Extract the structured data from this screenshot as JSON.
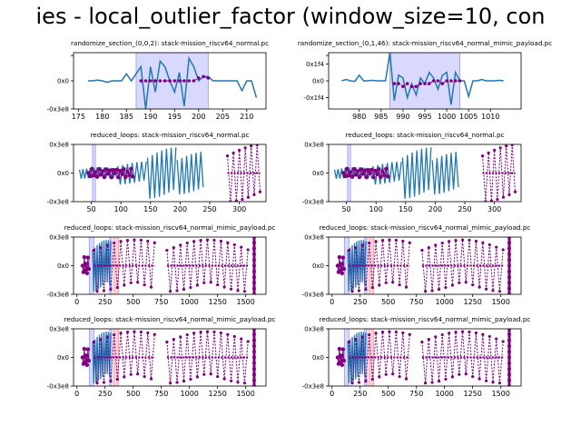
{
  "figure": {
    "suptitle": "ies - local_outlier_factor (window_size=10, con"
  },
  "colors": {
    "line": "#1f77b4",
    "outlier": "#800080",
    "highlight_blue": "#0000ff",
    "highlight_red": "#ff0000"
  },
  "chart_data": [
    {
      "type": "line",
      "title": "randomize_section_(0,0,2): stack-mission_riscv64_normal.pc",
      "xlim": [
        174,
        214
      ],
      "ylim": [
        -1,
        1
      ],
      "xticks": [
        175,
        180,
        185,
        190,
        195,
        200,
        205,
        210
      ],
      "xtick_labels": [
        "175",
        "180",
        "185",
        "190",
        "195",
        "200",
        "205",
        "210"
      ],
      "yticks": [
        0.9,
        0,
        -1
      ],
      "ytick_labels": [
        "",
        "0x0",
        "-0x3e8"
      ],
      "spans": [
        {
          "x0": 187,
          "x1": 202,
          "color": "blue"
        }
      ],
      "series": [
        {
          "style": "line",
          "color": "#1f77b4",
          "x": [
            177,
            178,
            179,
            180,
            181,
            182,
            183,
            184,
            185,
            186,
            187,
            188,
            189,
            190,
            191,
            192,
            193,
            194,
            195,
            196,
            197,
            198,
            199,
            200,
            201,
            202,
            203,
            204,
            205,
            206,
            207,
            208,
            209,
            210,
            211,
            212
          ],
          "y": [
            0,
            0,
            0.03,
            0,
            -0.05,
            0,
            0,
            0,
            0.25,
            0,
            0.25,
            0.5,
            -1,
            0.5,
            -0.4,
            0.7,
            0.5,
            0,
            -0.4,
            0.3,
            -0.9,
            0.8,
            0.5,
            0,
            0.15,
            0.15,
            0,
            0,
            0,
            0,
            0,
            0,
            -0.35,
            0,
            0,
            -0.6
          ]
        },
        {
          "style": "points",
          "color": "#800080",
          "x": [
            188,
            189,
            190,
            191,
            192,
            193,
            194,
            195,
            196,
            197,
            198,
            199,
            200,
            201,
            202
          ],
          "y": [
            0,
            0,
            0,
            0,
            0,
            0,
            0,
            0,
            0,
            0,
            0,
            0,
            0.1,
            0.15,
            0.1
          ]
        }
      ]
    },
    {
      "type": "line",
      "title": "randomize_section_(0,1,46): stack-mission_riscv64_normal_mimic_payload.pc",
      "xlim": [
        973,
        1017
      ],
      "ylim": [
        -1,
        1
      ],
      "xticks": [
        980,
        985,
        990,
        995,
        1000,
        1005,
        1010
      ],
      "xtick_labels": [
        "980",
        "985",
        "990",
        "995",
        "1000",
        "1005",
        "1010"
      ],
      "yticks": [
        0.9,
        0.6,
        0,
        -0.6
      ],
      "ytick_labels": [
        "",
        "0x1f4",
        "0x0",
        "-0x1f4"
      ],
      "spans": [
        {
          "x0": 987,
          "x1": 1003,
          "color": "blue"
        }
      ],
      "series": [
        {
          "style": "line",
          "color": "#1f77b4",
          "x": [
            976,
            977,
            978,
            979,
            980,
            981,
            982,
            983,
            984,
            985,
            986,
            987,
            988,
            989,
            990,
            991,
            992,
            993,
            994,
            995,
            996,
            997,
            998,
            999,
            1000,
            1001,
            1002,
            1003,
            1004,
            1005,
            1006,
            1007,
            1008,
            1009,
            1010,
            1011,
            1012,
            1013
          ],
          "y": [
            0,
            0.05,
            0,
            -0.02,
            0.2,
            0,
            0,
            0.02,
            0,
            0,
            0,
            1,
            -0.7,
            0.2,
            0.1,
            -0.6,
            -0.1,
            -0.5,
            0.1,
            -0.1,
            0.3,
            0.1,
            -0.3,
            0.2,
            0.3,
            -0.85,
            0.3,
            0,
            0,
            -0.55,
            0,
            0,
            0.05,
            0,
            0,
            0,
            0.02,
            0
          ]
        },
        {
          "style": "points",
          "color": "#800080",
          "x": [
            988,
            989,
            990,
            991,
            992,
            993,
            994,
            995,
            996,
            997,
            998,
            999,
            1000,
            1001,
            1002,
            1003
          ],
          "y": [
            -0.1,
            -0.1,
            -0.2,
            -0.1,
            -0.2,
            -0.2,
            -0.1,
            -0.1,
            -0.1,
            0,
            0,
            -0.1,
            0,
            0,
            0,
            0
          ]
        }
      ]
    },
    {
      "type": "line",
      "title": "reduced_loops: stack-mission_riscv64_normal.pc",
      "xlim": [
        20,
        345
      ],
      "ylim": [
        -1,
        1
      ],
      "xticks": [
        50,
        100,
        150,
        200,
        250,
        300
      ],
      "xtick_labels": [
        "50",
        "100",
        "150",
        "200",
        "250",
        "300"
      ],
      "yticks": [
        1,
        0,
        -1
      ],
      "ytick_labels": [
        "0x3e8",
        "0x0",
        "-0x3e8"
      ],
      "spans": [
        {
          "x0": 52,
          "x1": 57,
          "color": "blue"
        }
      ],
      "bursts": [
        {
          "x0": 30,
          "x1": 95,
          "amp": 0.2,
          "step": 3,
          "kind": "line"
        },
        {
          "x0": 95,
          "x1": 145,
          "amp": 0.4,
          "step": 4,
          "kind": "line"
        },
        {
          "x0": 145,
          "x1": 195,
          "amp": 0.9,
          "step": 4,
          "kind": "line"
        },
        {
          "x0": 195,
          "x1": 240,
          "amp": 0.75,
          "step": 4,
          "kind": "line"
        },
        {
          "x0": 45,
          "x1": 120,
          "amp": 0.15,
          "step": 3,
          "kind": "points"
        },
        {
          "x0": 280,
          "x1": 335,
          "amp": 1.0,
          "step": 5,
          "kind": "dashed"
        }
      ]
    },
    {
      "type": "line",
      "title": "reduced_loops: stack-mission_riscv64_normal.pc",
      "xlim": [
        20,
        345
      ],
      "ylim": [
        -1,
        1
      ],
      "xticks": [
        50,
        100,
        150,
        200,
        250,
        300
      ],
      "xtick_labels": [
        "50",
        "100",
        "150",
        "200",
        "250",
        "300"
      ],
      "yticks": [
        1,
        0,
        -1
      ],
      "ytick_labels": [
        "0x3e8",
        "0x0",
        "-0x3e8"
      ],
      "spans": [
        {
          "x0": 52,
          "x1": 57,
          "color": "blue"
        }
      ],
      "bursts": [
        {
          "x0": 30,
          "x1": 95,
          "amp": 0.2,
          "step": 3,
          "kind": "line"
        },
        {
          "x0": 95,
          "x1": 145,
          "amp": 0.4,
          "step": 4,
          "kind": "line"
        },
        {
          "x0": 145,
          "x1": 195,
          "amp": 0.9,
          "step": 4,
          "kind": "line"
        },
        {
          "x0": 195,
          "x1": 240,
          "amp": 0.75,
          "step": 4,
          "kind": "line"
        },
        {
          "x0": 45,
          "x1": 120,
          "amp": 0.15,
          "step": 3,
          "kind": "points"
        },
        {
          "x0": 280,
          "x1": 335,
          "amp": 1.0,
          "step": 5,
          "kind": "dashed"
        }
      ]
    },
    {
      "type": "line",
      "title": "reduced_loops: stack-mission_riscv64_normal_mimic_payload.pc",
      "xlim": [
        -30,
        1680
      ],
      "ylim": [
        -1,
        1
      ],
      "xticks": [
        0,
        250,
        500,
        750,
        1000,
        1250,
        1500
      ],
      "xtick_labels": [
        "0",
        "250",
        "500",
        "750",
        "1000",
        "1250",
        "1500"
      ],
      "yticks": [
        1,
        0,
        -1
      ],
      "ytick_labels": [
        "0x3e8",
        "0x0",
        "-0x3e8"
      ],
      "spans": [
        {
          "x0": 110,
          "x1": 150,
          "color": "blue"
        },
        {
          "x0": 290,
          "x1": 310,
          "color": "blue"
        },
        {
          "x0": 330,
          "x1": 370,
          "color": "red"
        }
      ],
      "bursts": [
        {
          "x0": 50,
          "x1": 110,
          "amp": 0.3,
          "step": 8,
          "kind": "points"
        },
        {
          "x0": 140,
          "x1": 300,
          "amp": 0.9,
          "step": 10,
          "kind": "line"
        },
        {
          "x0": 150,
          "x1": 700,
          "amp": 0.9,
          "step": 30,
          "kind": "dashed"
        },
        {
          "x0": 800,
          "x1": 1520,
          "amp": 0.9,
          "step": 30,
          "kind": "dashed"
        },
        {
          "x0": 1575,
          "x1": 1590,
          "amp": 1.0,
          "step": 3,
          "kind": "column"
        }
      ]
    },
    {
      "type": "line",
      "title": "reduced_loops: stack-mission_riscv64_normal_mimic_payload.pc",
      "xlim": [
        -30,
        1680
      ],
      "ylim": [
        -1,
        1
      ],
      "xticks": [
        0,
        250,
        500,
        750,
        1000,
        1250,
        1500
      ],
      "xtick_labels": [
        "0",
        "250",
        "500",
        "750",
        "1000",
        "1250",
        "1500"
      ],
      "yticks": [
        1,
        0,
        -1
      ],
      "ytick_labels": [
        "0x3e8",
        "0x0",
        "-0x3e8"
      ],
      "spans": [
        {
          "x0": 110,
          "x1": 150,
          "color": "blue"
        },
        {
          "x0": 290,
          "x1": 310,
          "color": "blue"
        },
        {
          "x0": 330,
          "x1": 370,
          "color": "red"
        }
      ],
      "bursts": [
        {
          "x0": 50,
          "x1": 110,
          "amp": 0.3,
          "step": 8,
          "kind": "points"
        },
        {
          "x0": 140,
          "x1": 300,
          "amp": 0.9,
          "step": 10,
          "kind": "line"
        },
        {
          "x0": 150,
          "x1": 700,
          "amp": 0.9,
          "step": 30,
          "kind": "dashed"
        },
        {
          "x0": 800,
          "x1": 1520,
          "amp": 0.9,
          "step": 30,
          "kind": "dashed"
        },
        {
          "x0": 1575,
          "x1": 1590,
          "amp": 1.0,
          "step": 3,
          "kind": "column"
        }
      ]
    },
    {
      "type": "line",
      "title": "reduced_loops: stack-mission_riscv64_normal_mimic_payload.pc",
      "xlim": [
        -30,
        1680
      ],
      "ylim": [
        -1,
        1
      ],
      "xticks": [
        0,
        250,
        500,
        750,
        1000,
        1250,
        1500
      ],
      "xtick_labels": [
        "0",
        "250",
        "500",
        "750",
        "1000",
        "1250",
        "1500"
      ],
      "yticks": [
        1,
        0,
        -1
      ],
      "ytick_labels": [
        "0x3e8",
        "0x0",
        "-0x3e8"
      ],
      "spans": [
        {
          "x0": 110,
          "x1": 150,
          "color": "blue"
        },
        {
          "x0": 290,
          "x1": 310,
          "color": "blue"
        },
        {
          "x0": 330,
          "x1": 370,
          "color": "red"
        }
      ],
      "bursts": [
        {
          "x0": 50,
          "x1": 110,
          "amp": 0.3,
          "step": 8,
          "kind": "points"
        },
        {
          "x0": 140,
          "x1": 300,
          "amp": 0.9,
          "step": 10,
          "kind": "line"
        },
        {
          "x0": 150,
          "x1": 700,
          "amp": 0.9,
          "step": 30,
          "kind": "dashed"
        },
        {
          "x0": 800,
          "x1": 1520,
          "amp": 0.9,
          "step": 30,
          "kind": "dashed"
        },
        {
          "x0": 1575,
          "x1": 1590,
          "amp": 1.0,
          "step": 3,
          "kind": "column"
        }
      ]
    },
    {
      "type": "line",
      "title": "reduced_loops: stack-mission_riscv64_normal_mimic_payload.pc",
      "xlim": [
        -30,
        1680
      ],
      "ylim": [
        -1,
        1
      ],
      "xticks": [
        0,
        250,
        500,
        750,
        1000,
        1250,
        1500
      ],
      "xtick_labels": [
        "0",
        "250",
        "500",
        "750",
        "1000",
        "1250",
        "1500"
      ],
      "yticks": [
        1,
        0,
        -1
      ],
      "ytick_labels": [
        "0x3e8",
        "0x0",
        "-0x3e8"
      ],
      "spans": [
        {
          "x0": 110,
          "x1": 150,
          "color": "blue"
        },
        {
          "x0": 290,
          "x1": 310,
          "color": "blue"
        },
        {
          "x0": 330,
          "x1": 370,
          "color": "red"
        }
      ],
      "bursts": [
        {
          "x0": 50,
          "x1": 110,
          "amp": 0.3,
          "step": 8,
          "kind": "points"
        },
        {
          "x0": 140,
          "x1": 300,
          "amp": 0.9,
          "step": 10,
          "kind": "line"
        },
        {
          "x0": 150,
          "x1": 700,
          "amp": 0.9,
          "step": 30,
          "kind": "dashed"
        },
        {
          "x0": 800,
          "x1": 1520,
          "amp": 0.9,
          "step": 30,
          "kind": "dashed"
        },
        {
          "x0": 1575,
          "x1": 1590,
          "amp": 1.0,
          "step": 3,
          "kind": "column"
        }
      ]
    }
  ]
}
